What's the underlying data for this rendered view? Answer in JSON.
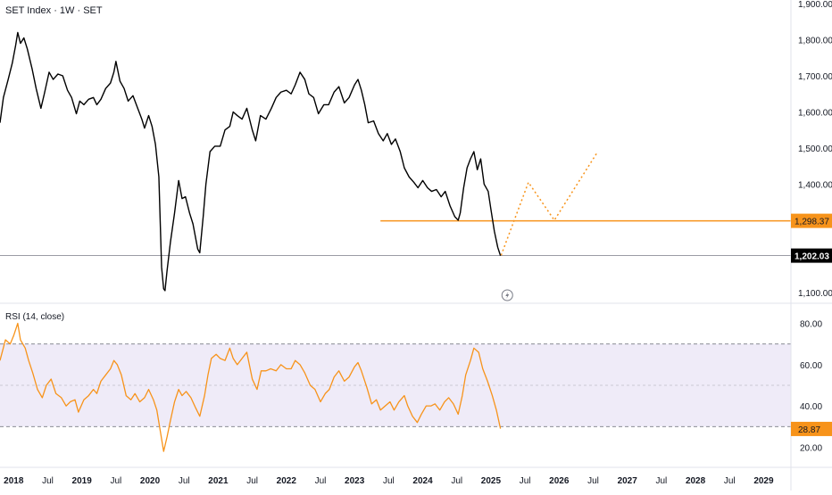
{
  "header": {
    "title": "SET Index · 1W · SET"
  },
  "rsi_panel": {
    "title": "RSI (14, close)"
  },
  "colors": {
    "price_line": "#000000",
    "support_line": "#f7931a",
    "projection": "#f7931a",
    "rsi_line": "#f7931a",
    "rsi_band": "#7e57c2",
    "last_price_tag": "#000000",
    "support_tag": "#f7931a"
  },
  "chart_data": [
    {
      "type": "line",
      "name": "price-chart",
      "title": "SET Index · 1W · SET",
      "ylim": [
        1080,
        1910
      ],
      "yticks": [
        1100,
        1200,
        1300,
        1400,
        1500,
        1600,
        1700,
        1800,
        1900
      ],
      "ytick_labels": [
        "1,100.00",
        "1,200.00",
        "1,300.00",
        "1,400.00",
        "1,500.00",
        "1,600.00",
        "1,700.00",
        "1,800.00",
        "1,900.00"
      ],
      "x_labels": [
        "2018",
        "Jul",
        "2019",
        "Jul",
        "2020",
        "Jul",
        "2021",
        "Jul",
        "2022",
        "Jul",
        "2023",
        "Jul",
        "2024",
        "Jul",
        "2025",
        "Jul",
        "2026",
        "Jul",
        "2027",
        "Jul",
        "2028",
        "Jul",
        "2029"
      ],
      "xlim": [
        2017.8,
        2029.4
      ],
      "series": [
        {
          "values": [
            [
              2017.8,
              1570
            ],
            [
              2017.85,
              1640
            ],
            [
              2017.92,
              1690
            ],
            [
              2017.98,
              1735
            ],
            [
              2018.03,
              1785
            ],
            [
              2018.06,
              1820
            ],
            [
              2018.1,
              1790
            ],
            [
              2018.15,
              1805
            ],
            [
              2018.2,
              1775
            ],
            [
              2018.27,
              1720
            ],
            [
              2018.33,
              1665
            ],
            [
              2018.4,
              1610
            ],
            [
              2018.45,
              1650
            ],
            [
              2018.52,
              1710
            ],
            [
              2018.58,
              1690
            ],
            [
              2018.65,
              1705
            ],
            [
              2018.72,
              1700
            ],
            [
              2018.79,
              1660
            ],
            [
              2018.85,
              1640
            ],
            [
              2018.92,
              1595
            ],
            [
              2018.97,
              1630
            ],
            [
              2019.03,
              1620
            ],
            [
              2019.1,
              1635
            ],
            [
              2019.17,
              1640
            ],
            [
              2019.22,
              1620
            ],
            [
              2019.28,
              1635
            ],
            [
              2019.35,
              1665
            ],
            [
              2019.42,
              1680
            ],
            [
              2019.47,
              1710
            ],
            [
              2019.5,
              1740
            ],
            [
              2019.56,
              1685
            ],
            [
              2019.62,
              1665
            ],
            [
              2019.68,
              1630
            ],
            [
              2019.75,
              1645
            ],
            [
              2019.82,
              1610
            ],
            [
              2019.88,
              1580
            ],
            [
              2019.92,
              1555
            ],
            [
              2019.98,
              1590
            ],
            [
              2020.03,
              1560
            ],
            [
              2020.08,
              1510
            ],
            [
              2020.13,
              1420
            ],
            [
              2020.17,
              1170
            ],
            [
              2020.2,
              1110
            ],
            [
              2020.22,
              1105
            ],
            [
              2020.25,
              1160
            ],
            [
              2020.3,
              1240
            ],
            [
              2020.36,
              1320
            ],
            [
              2020.42,
              1410
            ],
            [
              2020.47,
              1360
            ],
            [
              2020.52,
              1365
            ],
            [
              2020.58,
              1320
            ],
            [
              2020.63,
              1290
            ],
            [
              2020.7,
              1220
            ],
            [
              2020.73,
              1210
            ],
            [
              2020.78,
              1310
            ],
            [
              2020.82,
              1400
            ],
            [
              2020.88,
              1490
            ],
            [
              2020.95,
              1505
            ],
            [
              2021.03,
              1505
            ],
            [
              2021.1,
              1550
            ],
            [
              2021.17,
              1560
            ],
            [
              2021.22,
              1600
            ],
            [
              2021.28,
              1590
            ],
            [
              2021.35,
              1580
            ],
            [
              2021.42,
              1610
            ],
            [
              2021.5,
              1550
            ],
            [
              2021.55,
              1520
            ],
            [
              2021.62,
              1590
            ],
            [
              2021.7,
              1580
            ],
            [
              2021.78,
              1610
            ],
            [
              2021.85,
              1640
            ],
            [
              2021.92,
              1655
            ],
            [
              2022.0,
              1660
            ],
            [
              2022.07,
              1650
            ],
            [
              2022.13,
              1675
            ],
            [
              2022.2,
              1710
            ],
            [
              2022.27,
              1690
            ],
            [
              2022.33,
              1650
            ],
            [
              2022.4,
              1640
            ],
            [
              2022.47,
              1595
            ],
            [
              2022.55,
              1620
            ],
            [
              2022.62,
              1620
            ],
            [
              2022.7,
              1655
            ],
            [
              2022.77,
              1670
            ],
            [
              2022.85,
              1625
            ],
            [
              2022.92,
              1640
            ],
            [
              2023.0,
              1675
            ],
            [
              2023.05,
              1690
            ],
            [
              2023.1,
              1660
            ],
            [
              2023.15,
              1620
            ],
            [
              2023.2,
              1570
            ],
            [
              2023.28,
              1575
            ],
            [
              2023.35,
              1540
            ],
            [
              2023.42,
              1520
            ],
            [
              2023.48,
              1540
            ],
            [
              2023.54,
              1510
            ],
            [
              2023.6,
              1525
            ],
            [
              2023.67,
              1490
            ],
            [
              2023.73,
              1445
            ],
            [
              2023.8,
              1420
            ],
            [
              2023.87,
              1405
            ],
            [
              2023.93,
              1390
            ],
            [
              2024.0,
              1410
            ],
            [
              2024.07,
              1390
            ],
            [
              2024.13,
              1380
            ],
            [
              2024.2,
              1385
            ],
            [
              2024.27,
              1365
            ],
            [
              2024.33,
              1380
            ],
            [
              2024.4,
              1340
            ],
            [
              2024.47,
              1310
            ],
            [
              2024.52,
              1300
            ],
            [
              2024.55,
              1320
            ],
            [
              2024.6,
              1390
            ],
            [
              2024.65,
              1445
            ],
            [
              2024.7,
              1470
            ],
            [
              2024.75,
              1490
            ],
            [
              2024.8,
              1440
            ],
            [
              2024.85,
              1470
            ],
            [
              2024.9,
              1400
            ],
            [
              2024.96,
              1380
            ],
            [
              2025.0,
              1330
            ],
            [
              2025.05,
              1270
            ],
            [
              2025.1,
              1225
            ],
            [
              2025.14,
              1202
            ]
          ]
        }
      ],
      "support_level": 1298.37,
      "support_label": "1,298.37",
      "last_price": 1202.03,
      "last_price_label": "1,202.03",
      "projection": [
        [
          2025.15,
          1203
        ],
        [
          2025.55,
          1405
        ],
        [
          2025.93,
          1300
        ],
        [
          2026.55,
          1485
        ]
      ]
    },
    {
      "type": "line",
      "name": "rsi-chart",
      "title": "RSI (14, close)",
      "ylim": [
        12,
        88
      ],
      "yticks": [
        20,
        40,
        60,
        80
      ],
      "ytick_labels": [
        "20.00",
        "40.00",
        "60.00",
        "80.00"
      ],
      "band": [
        30,
        70
      ],
      "midline": 50,
      "last_value": 28.87,
      "last_label": "28.87",
      "xlim": [
        2017.8,
        2029.4
      ],
      "series": [
        {
          "values": [
            [
              2017.8,
              62
            ],
            [
              2017.88,
              72
            ],
            [
              2017.95,
              70
            ],
            [
              2018.0,
              74
            ],
            [
              2018.06,
              80
            ],
            [
              2018.1,
              72
            ],
            [
              2018.17,
              68
            ],
            [
              2018.22,
              62
            ],
            [
              2018.28,
              56
            ],
            [
              2018.35,
              48
            ],
            [
              2018.42,
              44
            ],
            [
              2018.48,
              50
            ],
            [
              2018.55,
              53
            ],
            [
              2018.62,
              46
            ],
            [
              2018.7,
              44
            ],
            [
              2018.77,
              40
            ],
            [
              2018.83,
              42
            ],
            [
              2018.9,
              43
            ],
            [
              2018.95,
              37
            ],
            [
              2019.03,
              43
            ],
            [
              2019.1,
              45
            ],
            [
              2019.17,
              48
            ],
            [
              2019.22,
              46
            ],
            [
              2019.28,
              52
            ],
            [
              2019.35,
              55
            ],
            [
              2019.42,
              58
            ],
            [
              2019.47,
              62
            ],
            [
              2019.52,
              60
            ],
            [
              2019.58,
              55
            ],
            [
              2019.65,
              45
            ],
            [
              2019.72,
              43
            ],
            [
              2019.78,
              46
            ],
            [
              2019.85,
              42
            ],
            [
              2019.92,
              44
            ],
            [
              2019.98,
              48
            ],
            [
              2020.05,
              43
            ],
            [
              2020.1,
              38
            ],
            [
              2020.15,
              28
            ],
            [
              2020.2,
              18
            ],
            [
              2020.25,
              25
            ],
            [
              2020.3,
              33
            ],
            [
              2020.36,
              42
            ],
            [
              2020.42,
              48
            ],
            [
              2020.47,
              45
            ],
            [
              2020.53,
              47
            ],
            [
              2020.6,
              44
            ],
            [
              2020.67,
              39
            ],
            [
              2020.73,
              35
            ],
            [
              2020.8,
              45
            ],
            [
              2020.85,
              55
            ],
            [
              2020.9,
              63
            ],
            [
              2020.97,
              65
            ],
            [
              2021.03,
              63
            ],
            [
              2021.1,
              62
            ],
            [
              2021.17,
              68
            ],
            [
              2021.22,
              63
            ],
            [
              2021.28,
              60
            ],
            [
              2021.35,
              63
            ],
            [
              2021.42,
              66
            ],
            [
              2021.5,
              53
            ],
            [
              2021.57,
              48
            ],
            [
              2021.63,
              57
            ],
            [
              2021.7,
              57
            ],
            [
              2021.77,
              58
            ],
            [
              2021.85,
              57
            ],
            [
              2021.92,
              60
            ],
            [
              2022.0,
              58
            ],
            [
              2022.07,
              58
            ],
            [
              2022.13,
              62
            ],
            [
              2022.2,
              60
            ],
            [
              2022.27,
              56
            ],
            [
              2022.35,
              50
            ],
            [
              2022.42,
              48
            ],
            [
              2022.5,
              42
            ],
            [
              2022.57,
              46
            ],
            [
              2022.63,
              48
            ],
            [
              2022.7,
              54
            ],
            [
              2022.77,
              57
            ],
            [
              2022.85,
              52
            ],
            [
              2022.92,
              54
            ],
            [
              2023.0,
              59
            ],
            [
              2023.05,
              61
            ],
            [
              2023.1,
              57
            ],
            [
              2023.18,
              49
            ],
            [
              2023.25,
              41
            ],
            [
              2023.32,
              43
            ],
            [
              2023.38,
              38
            ],
            [
              2023.45,
              40
            ],
            [
              2023.52,
              42
            ],
            [
              2023.58,
              38
            ],
            [
              2023.65,
              42
            ],
            [
              2023.73,
              45
            ],
            [
              2023.78,
              40
            ],
            [
              2023.85,
              35
            ],
            [
              2023.92,
              32
            ],
            [
              2023.98,
              36
            ],
            [
              2024.05,
              40
            ],
            [
              2024.12,
              40
            ],
            [
              2024.18,
              41
            ],
            [
              2024.25,
              38
            ],
            [
              2024.32,
              42
            ],
            [
              2024.38,
              44
            ],
            [
              2024.45,
              41
            ],
            [
              2024.52,
              36
            ],
            [
              2024.58,
              45
            ],
            [
              2024.63,
              55
            ],
            [
              2024.7,
              62
            ],
            [
              2024.75,
              68
            ],
            [
              2024.82,
              66
            ],
            [
              2024.88,
              58
            ],
            [
              2024.95,
              52
            ],
            [
              2025.02,
              45
            ],
            [
              2025.08,
              38
            ],
            [
              2025.14,
              29
            ]
          ]
        }
      ]
    }
  ]
}
